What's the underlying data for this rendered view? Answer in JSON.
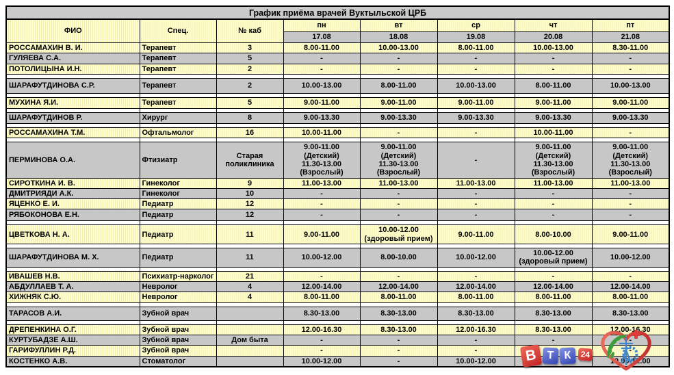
{
  "table": {
    "title": "График приёма врачей Вуктыльской ЦРБ",
    "columns": {
      "fio": "ФИО",
      "spec": "Спец.",
      "room": "№ каб"
    },
    "days": [
      {
        "name": "пн",
        "date": "17.08"
      },
      {
        "name": "вт",
        "date": "18.08"
      },
      {
        "name": "ср",
        "date": "19.08"
      },
      {
        "name": "чт",
        "date": "20.08"
      },
      {
        "name": "пт",
        "date": "21.08"
      }
    ],
    "rows": [
      {
        "fio": "РОССАМАХИН В. И.",
        "spec": "Терапевт",
        "room": "3",
        "days": [
          "8.00-11.00",
          "10.00-13.00",
          "8.00-11.00",
          "10.00-13.00",
          "8.30-11.00"
        ]
      },
      {
        "fio": "ГУЛЯЕВА С.А.",
        "spec": "Терапевт",
        "room": "5",
        "days": [
          "-",
          "-",
          "-",
          "-",
          "-"
        ]
      },
      {
        "fio": "ПОТОЛИЦЫНА И.Н.",
        "spec": "Терапевт",
        "room": "2",
        "days": [
          "-",
          "-",
          "-",
          "-",
          "-"
        ]
      },
      {
        "fio": "ШАРАФУТДИНОВА С.Р.",
        "spec": "Терапевт",
        "room": "2",
        "days": [
          "10.00-13.00",
          "8.00-11.00",
          "10.00-13.00",
          "8.00-11.00",
          "10.00-13.00"
        ]
      },
      {
        "fio": "МУХИНА Я.И.",
        "spec": "Терапевт",
        "room": "5",
        "days": [
          "9.00-11.00",
          "9.00-11.00",
          "9.00-11.00",
          "9.00-11.00",
          "9.00-11.00"
        ]
      },
      {
        "fio": "ШАРАФУТДИНОВ Р.",
        "spec": "Хирург",
        "room": "8",
        "days": [
          "9.00-13.30",
          "9.00-13.30",
          "9.00-13.30",
          "9.00-13.30",
          "9.00-13.30"
        ]
      },
      {
        "fio": "РОССАМАХИНА Т.М.",
        "spec": "Офтальмолог",
        "room": "16",
        "days": [
          "10.00-11.00",
          "-",
          "-",
          "10.00-11.00",
          "-"
        ]
      },
      {
        "fio": "ПЕРМИНОВА О.А.",
        "spec": "Фтизиатр",
        "room": "Старая\nполиклиника",
        "days": [
          "9.00-11.00\n(Детский)\n11.30-13.00\n(Взрослый)",
          "9.00-11.00\n(Детский)\n11.30-13.00\n(Взрослый)",
          "-",
          "9.00-11.00\n(Детский)\n11.30-13.00\n(Взрослый)",
          "9.00-11.00\n(Детский)\n11.30-13.00\n(Взрослый)"
        ]
      },
      {
        "fio": "СИРОТКИНА И. В.",
        "spec": "Гинеколог",
        "room": "9",
        "days": [
          "11.00-13.00",
          "11.00-13.00",
          "11.00-13.00",
          "11.00-13.00",
          "11.00-13.00"
        ]
      },
      {
        "fio": "ДМИТРИЯДИ А.К.",
        "spec": "Гинеколог",
        "room": "10",
        "days": [
          "-",
          "-",
          "-",
          "-",
          "-"
        ]
      },
      {
        "fio": "ЯЦЕНКО Е. И.",
        "spec": "Педиатр",
        "room": "12",
        "days": [
          "-",
          "-",
          "-",
          "-",
          "-"
        ]
      },
      {
        "fio": "РЯБОКОНОВА Е.Н.",
        "spec": "Педиатр",
        "room": "12",
        "days": [
          "-",
          "-",
          "-",
          "-",
          "-"
        ]
      },
      {
        "fio": "ЦВЕТКОВА Н. А.",
        "spec": "Педиатр",
        "room": "11",
        "days": [
          "9.00-11.00",
          "10.00-12.00\n(здоровый прием)",
          "9.00-11.00",
          "8.00-10.00",
          "9.00-11.00"
        ]
      },
      {
        "fio": "ШАРАФУТДИНОВА М. Х.",
        "spec": "Педиатр",
        "room": "11",
        "days": [
          "10.00-12.00",
          "8.00-10.00",
          "10.00-12.00",
          "10.00-12.00\n(здоровый прием)",
          "10.00-12.00"
        ]
      },
      {
        "fio": "ИВАШЕВ Н.В.",
        "spec": "Психиатр-нарколог",
        "room": "21",
        "days": [
          "-",
          "-",
          "-",
          "-",
          "-"
        ]
      },
      {
        "fio": "АБДУЛЛАЕВ Т. А.",
        "spec": "Невролог",
        "room": "4",
        "days": [
          "12.00-14.00",
          "12.00-14.00",
          "12.00-14.00",
          "12.00-14.00",
          "12.00-14.00"
        ]
      },
      {
        "fio": "ХИЖНЯК С.Ю.",
        "spec": "Невролог",
        "room": "4",
        "days": [
          "8.00-11.00",
          "8.00-11.00",
          "8.00-11.00",
          "8.00-11.00",
          "8.00-11.00"
        ]
      },
      {
        "fio": "ТАРАСОВ А.И.",
        "spec": "Зубной врач",
        "room": "",
        "days": [
          "8.30-13.00",
          "8.30-13.00",
          "8.30-13.00",
          "8.30-13.00",
          "8.30-13.00"
        ]
      },
      {
        "fio": "ДРЕПЕНКИНА О.Г.",
        "spec": "Зубной врач",
        "room": "",
        "days": [
          "12.00-16.30",
          "8.30-13.00",
          "12.00-16.30",
          "8.30-13.00",
          "12.00-16.30"
        ]
      },
      {
        "fio": "КУРТУБАДЗЕ А.Ш.",
        "spec": "Зубной врач",
        "room": "Дом быта",
        "days": [
          "-",
          "-",
          "-",
          "-",
          "-"
        ]
      },
      {
        "fio": "ГАРИФУЛЛИН Р.Д.",
        "spec": "Зубной врач",
        "room": "",
        "days": [
          "-",
          "-",
          "-",
          "-",
          "-"
        ]
      },
      {
        "fio": "КОСТЕНКО А.В.",
        "spec": "Стоматолог",
        "room": "",
        "days": [
          "10.00-12.00",
          "-",
          "10.00-12.00",
          "-",
          "10.00-12.00"
        ]
      }
    ]
  },
  "logos": {
    "vtk": {
      "letter1": "В",
      "letter2": "Т",
      "letter3": "К",
      "badge": "24"
    },
    "heart": {
      "description": "heart emblem with medical cross, laurel branch and gear"
    }
  },
  "colors": {
    "row_yellow": "#faf6b4",
    "row_gray": "#c7c7c7",
    "header_gray": "#cacaca",
    "border": "#000000",
    "vtk_red": "#c22424",
    "vtk_blue": "#3243b2",
    "heart_red": "#d94b4b",
    "wreath_green": "#3f9e3f",
    "emblem_blue": "#3e86c9"
  }
}
